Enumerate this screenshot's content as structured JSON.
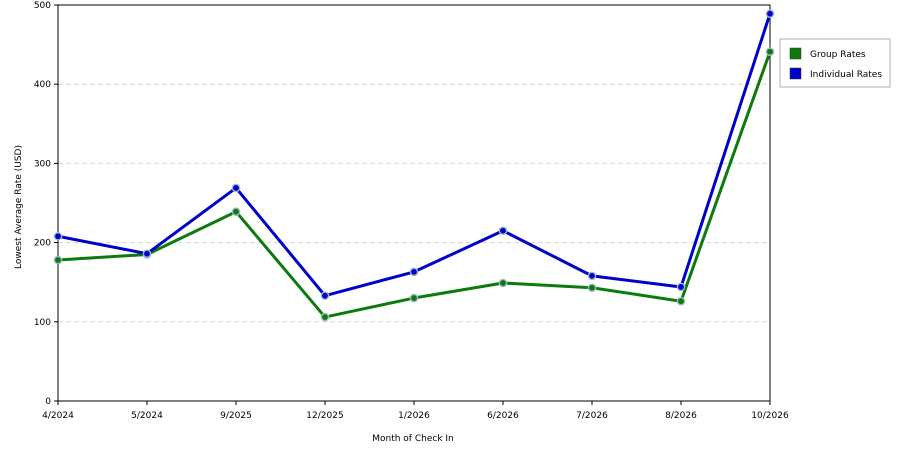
{
  "chart_data": {
    "type": "line",
    "categories": [
      "4/2024",
      "5/2024",
      "9/2025",
      "12/2025",
      "1/2026",
      "6/2026",
      "7/2026",
      "8/2026",
      "10/2026"
    ],
    "series": [
      {
        "name": "Group Rates",
        "color": "#0d7a0d",
        "values": [
          178,
          185,
          239,
          106,
          130,
          149,
          143,
          126,
          441
        ]
      },
      {
        "name": "Individual Rates",
        "color": "#0000cc",
        "values": [
          208,
          186,
          269,
          133,
          163,
          215,
          158,
          144,
          489
        ]
      }
    ],
    "title": "",
    "xlabel": "Month of Check In",
    "ylabel": "Lowest Average Rate (USD)",
    "ylim": [
      0,
      500
    ],
    "yticks": [
      0,
      100,
      200,
      300,
      400,
      500
    ],
    "grid": true,
    "legend_position": "top-right"
  }
}
